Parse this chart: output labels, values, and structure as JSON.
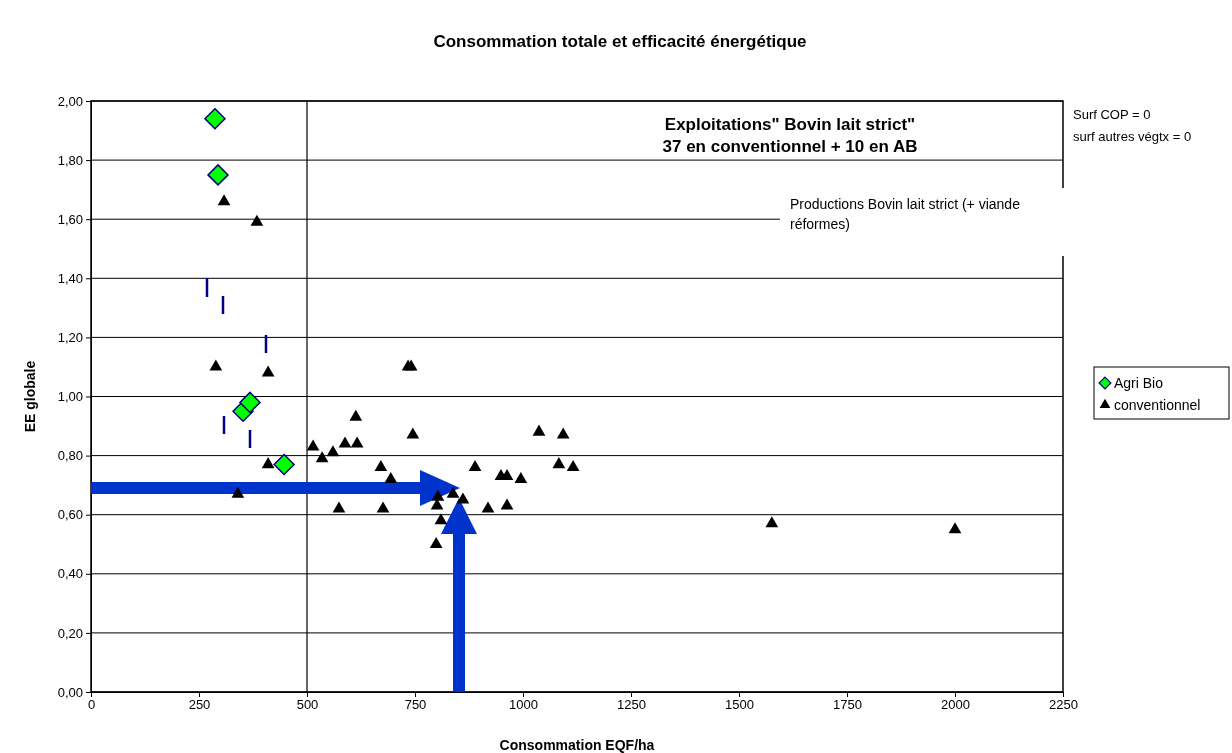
{
  "chart_data": {
    "type": "scatter",
    "title": "Consommation totale et efficacité énergétique",
    "xlabel": "Consommation EQF/ha",
    "ylabel": "EE globale",
    "xlim": [
      0,
      2250
    ],
    "xticks": [
      0,
      250,
      500,
      750,
      1000,
      1250,
      1500,
      1750,
      2000,
      2250
    ],
    "ylim": [
      0,
      2
    ],
    "yticks": [
      {
        "value": 0,
        "label": "0,00"
      },
      {
        "value": 0.2,
        "label": "0,20"
      },
      {
        "value": 0.4,
        "label": "0,40"
      },
      {
        "value": 0.6,
        "label": "0,60"
      },
      {
        "value": 0.8,
        "label": "0,80"
      },
      {
        "value": 1,
        "label": "1,00"
      },
      {
        "value": 1.2,
        "label": "1,20"
      },
      {
        "value": 1.4,
        "label": "1,40"
      },
      {
        "value": 1.6,
        "label": "1,60"
      },
      {
        "value": 1.8,
        "label": "1,80"
      },
      {
        "value": 2,
        "label": "2,00"
      }
    ],
    "grid": "y",
    "legend": "right",
    "ref_lines": [
      {
        "axis": "x",
        "value": 500,
        "color": "#000000"
      }
    ],
    "annotations": [
      "Exploitations\" Bovin lait strict\"",
      "37 en conventionnel + 10 en AB",
      "Productions Bovin lait strict (+ viande réformes)",
      "Surf COP = 0",
      "surf autres végtx = 0"
    ],
    "series": [
      {
        "name": "Agri Bio",
        "color": "#00ff00",
        "marker": "diamond",
        "x": [
          287,
          294,
          352,
          368,
          447
        ],
        "values": [
          1.94,
          1.75,
          0.95,
          0.98,
          0.77
        ]
      },
      {
        "name": "conventionnel",
        "color": "#000000",
        "marker": "triangle",
        "x": [
          308,
          384,
          289,
          410,
          734,
          741,
          340,
          410,
          574,
          676,
          613,
          745,
          514,
          535,
          560,
          588,
          616,
          671,
          694,
          889,
          801,
          838,
          861,
          803,
          810,
          799,
          1037,
          1093,
          1083,
          1116,
          949,
          963,
          995,
          919,
          963,
          1576,
          2000
        ],
        "values": [
          1.66,
          1.59,
          1.1,
          1.08,
          1.1,
          1.1,
          0.67,
          0.77,
          0.62,
          0.62,
          0.93,
          0.87,
          0.83,
          0.79,
          0.81,
          0.84,
          0.84,
          0.76,
          0.72,
          0.76,
          0.63,
          0.67,
          0.65,
          0.66,
          0.58,
          0.5,
          0.88,
          0.87,
          0.77,
          0.76,
          0.73,
          0.73,
          0.72,
          0.62,
          0.63,
          0.57,
          0.55
        ]
      }
    ]
  }
}
